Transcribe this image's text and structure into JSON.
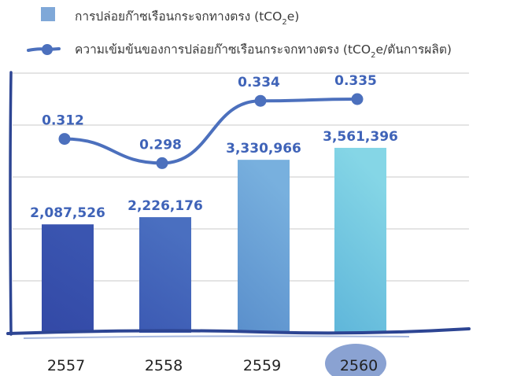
{
  "legend": {
    "bar_label_prefix": "การปล่อยก๊าซเรือนกระจกทางตรง (tCO",
    "bar_label_sub": "2",
    "bar_label_suffix": "e)",
    "line_label_prefix": "ความเข้มข้นของการปล่อยก๊าซเรือนกระจกทางตรง (tCO",
    "line_label_sub": "2",
    "line_label_suffix": "e/ตันการผลิต)"
  },
  "chart_data": {
    "type": "bar",
    "categories": [
      "2557",
      "2558",
      "2559",
      "2560"
    ],
    "highlighted_category": "2560",
    "series": [
      {
        "name": "การปล่อยก๊าซเรือนกระจกทางตรง (tCO2e)",
        "type": "bar",
        "values": [
          2087526,
          2226176,
          3330966,
          3561396
        ],
        "labels": [
          "2,087,526",
          "2,226,176",
          "3,330,966",
          "3,561,396"
        ]
      },
      {
        "name": "ความเข้มข้นของการปล่อยก๊าซเรือนกระจกทางตรง (tCO2e/ตันการผลิต)",
        "type": "line",
        "values": [
          0.312,
          0.298,
          0.334,
          0.335
        ],
        "labels": [
          "0.312",
          "0.298",
          "0.334",
          "0.335"
        ]
      }
    ],
    "bar_ylim": [
      0,
      5000000
    ],
    "line_ylim": [
      0.2,
      0.35
    ],
    "grid": true,
    "legend_position": "top",
    "colors": {
      "bar_bottoms": [
        "#3349a6",
        "#3c5ab3",
        "#5a8fcc",
        "#5fb6da"
      ],
      "bar_tops": [
        "#3a55b0",
        "#4a6fc0",
        "#78b0de",
        "#85d6e6"
      ],
      "line": "#4c70bd",
      "marker": "#4c70bd",
      "value_label": "#3f63b8",
      "frame": "#2d4593",
      "highlight_blob": "#8aa2d2"
    }
  }
}
